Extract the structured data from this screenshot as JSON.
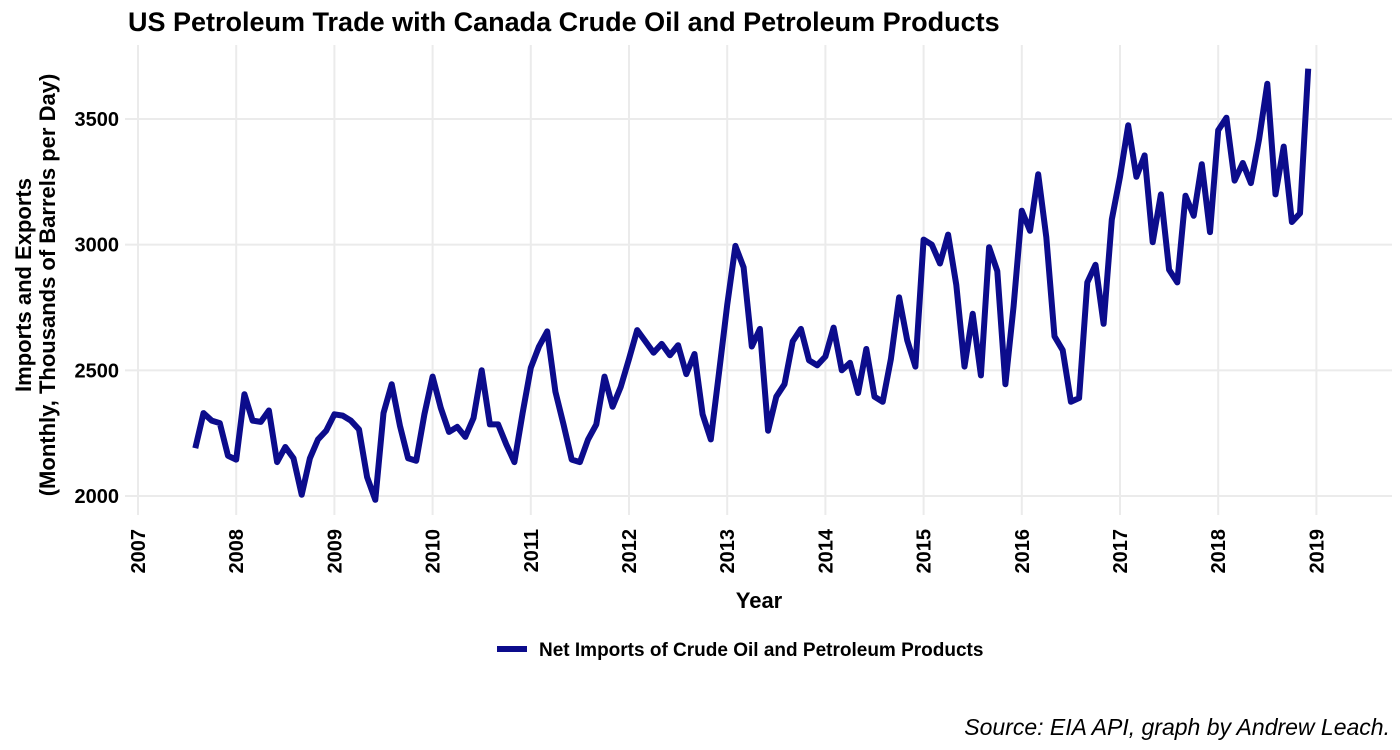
{
  "chart_data": {
    "type": "line",
    "title": "US Petroleum Trade with Canada Crude Oil and Petroleum Products",
    "xlabel": "Year",
    "ylabel_line1": "Imports and Exports",
    "ylabel_line2": "(Monthly, Thousands of Barrels per Day)",
    "caption": "Source: EIA API, graph by Andrew Leach.",
    "xlim": [
      2007.0,
      2020.0
    ],
    "ylim": [
      1960,
      3800
    ],
    "x_ticks": [
      {
        "value": 2007,
        "label": "2007"
      },
      {
        "value": 2008,
        "label": "2008"
      },
      {
        "value": 2009,
        "label": "2009"
      },
      {
        "value": 2010,
        "label": "2010"
      },
      {
        "value": 2011,
        "label": "2011"
      },
      {
        "value": 2012,
        "label": "2012"
      },
      {
        "value": 2013,
        "label": "2013"
      },
      {
        "value": 2014,
        "label": "2014"
      },
      {
        "value": 2015,
        "label": "2015"
      },
      {
        "value": 2016,
        "label": "2016"
      },
      {
        "value": 2017,
        "label": "2017"
      },
      {
        "value": 2018,
        "label": "2018"
      },
      {
        "value": 2019,
        "label": "2019"
      }
    ],
    "y_ticks": [
      {
        "value": 2000,
        "label": "2000"
      },
      {
        "value": 2500,
        "label": "2500"
      },
      {
        "value": 3000,
        "label": "3000"
      },
      {
        "value": 3500,
        "label": "3500"
      }
    ],
    "grid": true,
    "legend_position": "bottom",
    "series": [
      {
        "name": "Net Imports of Crude Oil and Petroleum Products",
        "color": "#0c0c8c",
        "x_start": "2007-08",
        "values": [
          2190,
          2330,
          2300,
          2290,
          2160,
          2145,
          2405,
          2300,
          2295,
          2340,
          2135,
          2195,
          2150,
          2005,
          2150,
          2225,
          2260,
          2325,
          2320,
          2300,
          2265,
          2075,
          1985,
          2330,
          2445,
          2280,
          2150,
          2140,
          2325,
          2475,
          2350,
          2255,
          2275,
          2235,
          2310,
          2500,
          2285,
          2285,
          2205,
          2135,
          2330,
          2510,
          2595,
          2655,
          2415,
          2285,
          2145,
          2135,
          2225,
          2285,
          2475,
          2355,
          2435,
          2545,
          2660,
          2615,
          2570,
          2605,
          2560,
          2600,
          2485,
          2565,
          2325,
          2225,
          2490,
          2760,
          2995,
          2910,
          2595,
          2665,
          2260,
          2395,
          2445,
          2615,
          2665,
          2540,
          2520,
          2555,
          2670,
          2500,
          2530,
          2410,
          2585,
          2395,
          2375,
          2545,
          2790,
          2620,
          2515,
          3020,
          3000,
          2925,
          3040,
          2840,
          2515,
          2725,
          2480,
          2990,
          2895,
          2445,
          2755,
          3135,
          3055,
          3280,
          3030,
          2635,
          2580,
          2375,
          2390,
          2850,
          2920,
          2685,
          3100,
          3270,
          3475,
          3270,
          3355,
          3010,
          3200,
          2900,
          2850,
          3195,
          3115,
          3320,
          3050,
          3455,
          3505,
          3255,
          3325,
          3245,
          3420,
          3640,
          3200,
          3390,
          3090,
          3125,
          3700
        ]
      }
    ]
  }
}
